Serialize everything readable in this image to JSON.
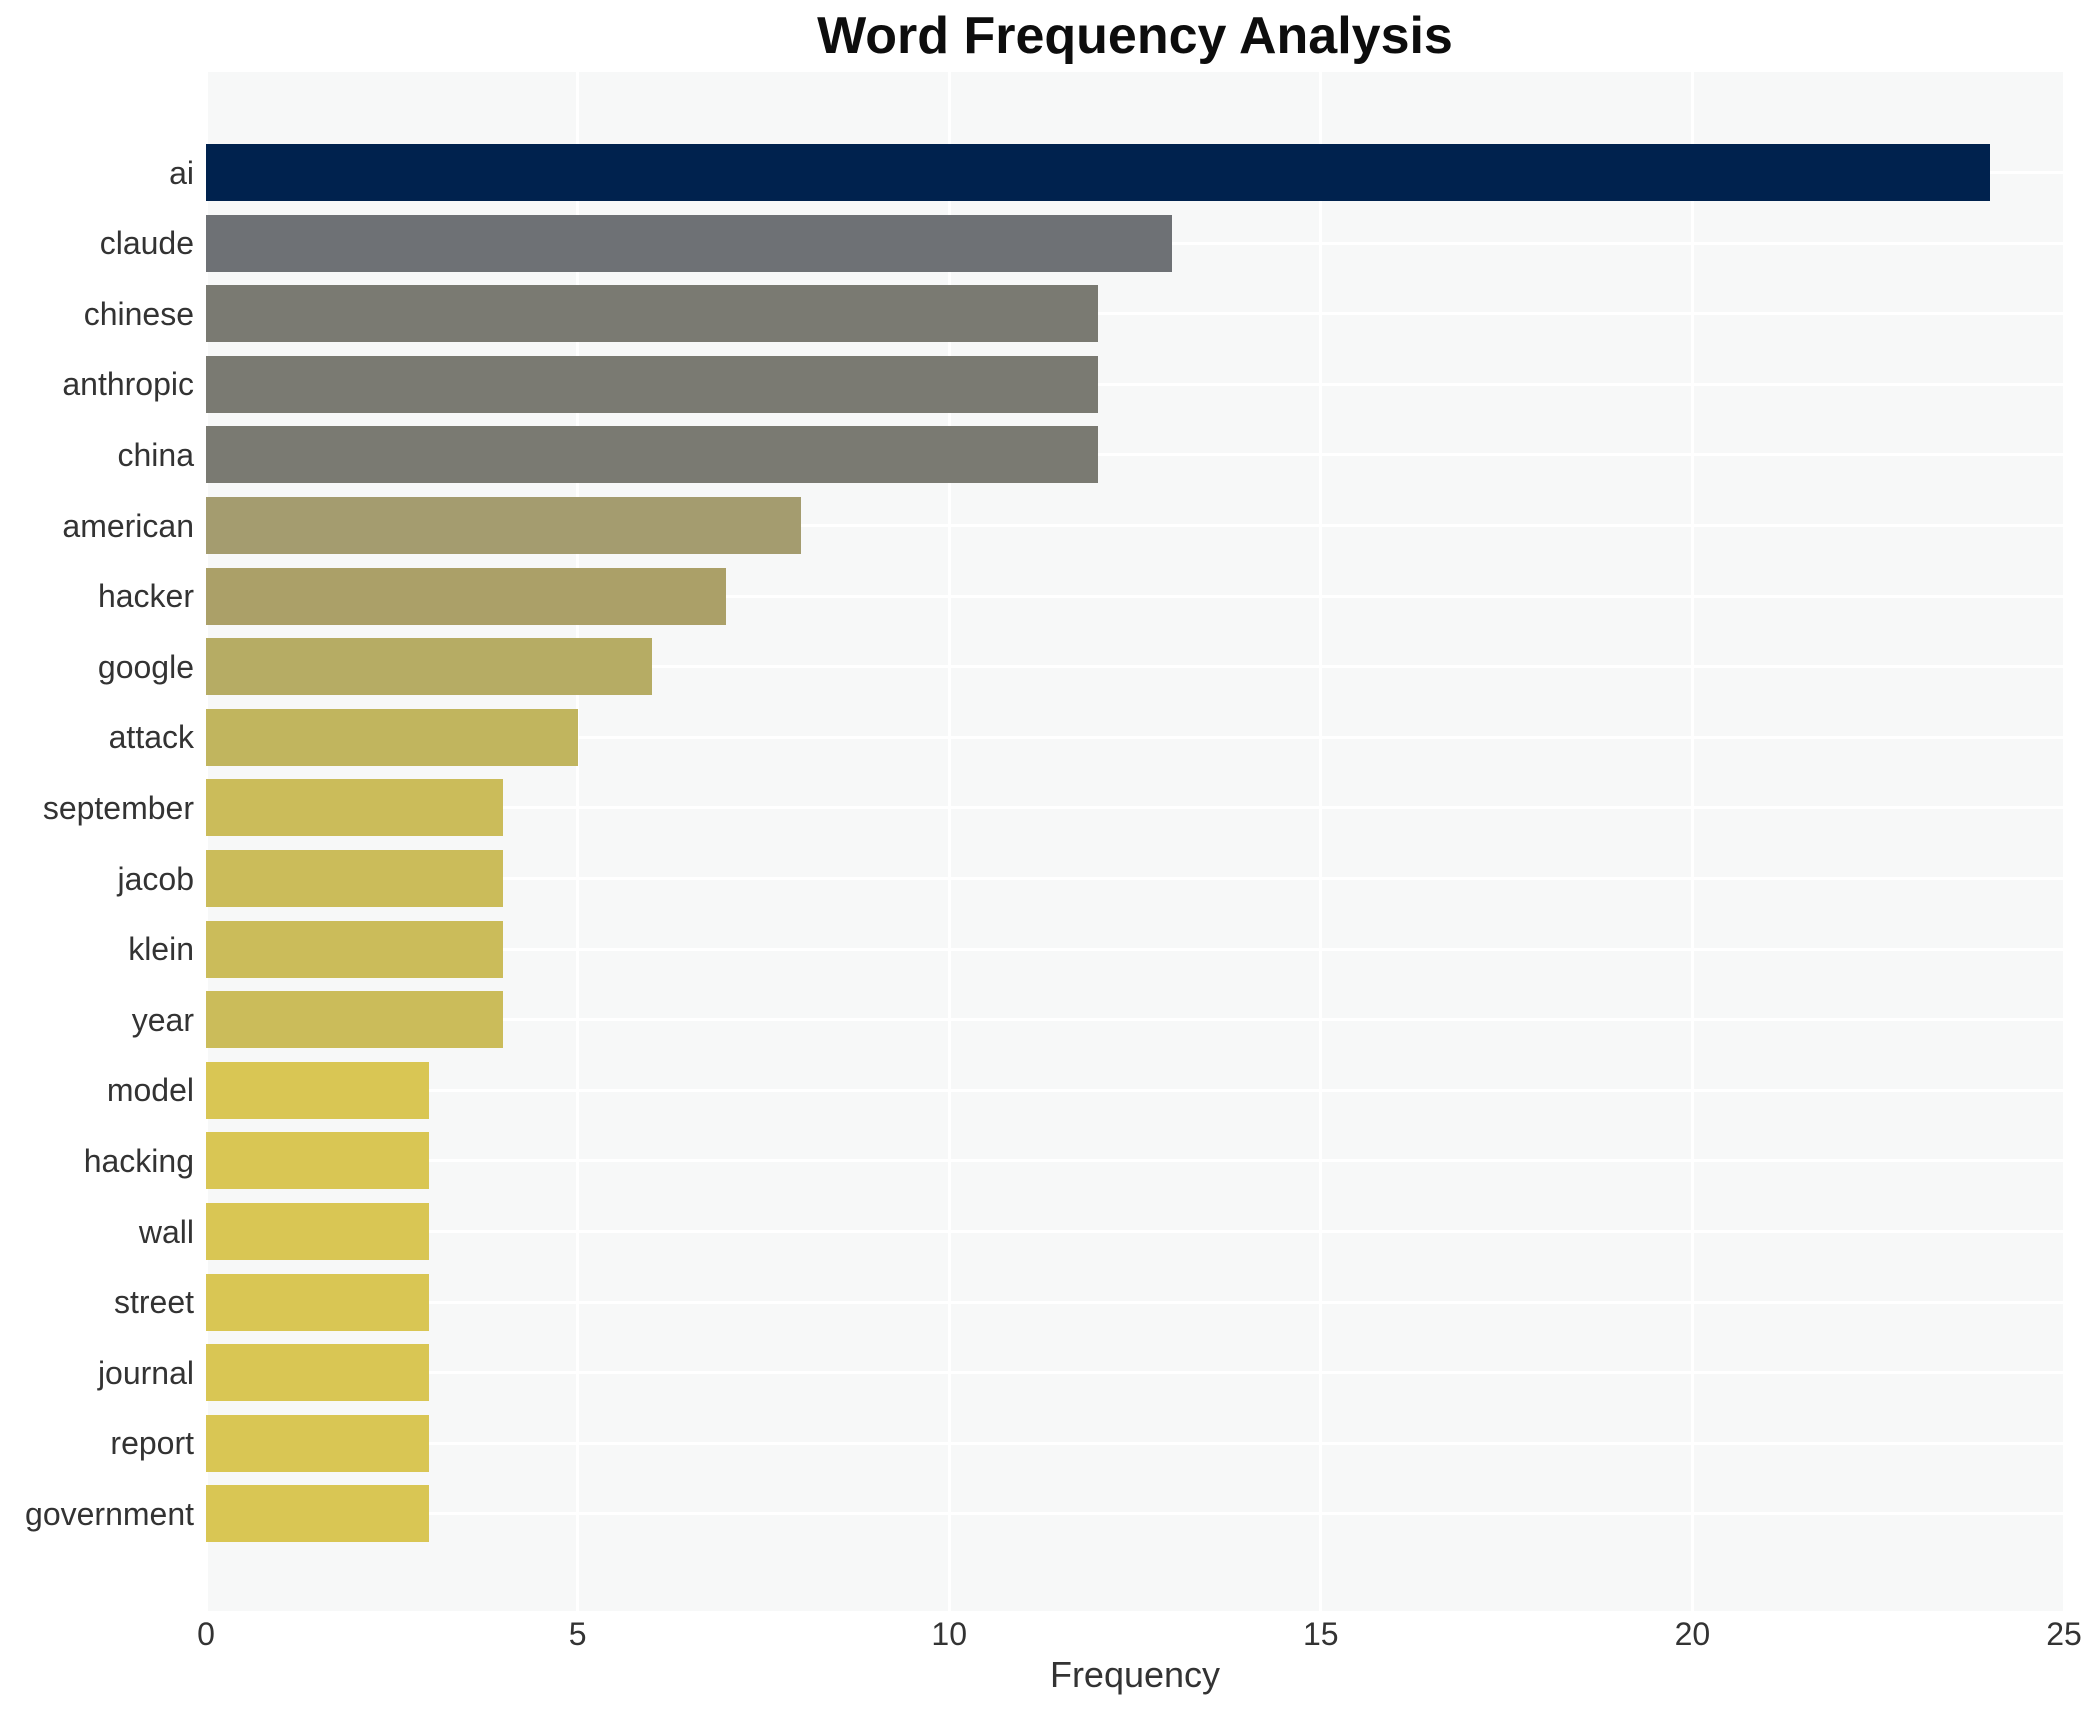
{
  "title": "Word Frequency Analysis",
  "chart_data": {
    "type": "bar",
    "orientation": "horizontal",
    "title": "Word Frequency Analysis",
    "xlabel": "Frequency",
    "ylabel": "",
    "xlim": [
      0,
      25
    ],
    "xticks": [
      0,
      5,
      10,
      15,
      20,
      25
    ],
    "grid": true,
    "legend": false,
    "categories": [
      "ai",
      "claude",
      "chinese",
      "anthropic",
      "china",
      "american",
      "hacker",
      "google",
      "attack",
      "september",
      "jacob",
      "klein",
      "year",
      "model",
      "hacking",
      "wall",
      "street",
      "journal",
      "report",
      "government"
    ],
    "values": [
      24,
      13,
      12,
      12,
      12,
      8,
      7,
      6,
      5,
      4,
      4,
      4,
      4,
      3,
      3,
      3,
      3,
      3,
      3,
      3
    ],
    "bar_colors": [
      "#00224e",
      "#6e7175",
      "#7a7a72",
      "#7a7a72",
      "#7a7a72",
      "#a49c6f",
      "#aba068",
      "#b6ac64",
      "#c1b55e",
      "#cbbc5a",
      "#cbbc5a",
      "#cbbc5a",
      "#cbbc5a",
      "#d9c654",
      "#d9c654",
      "#d9c654",
      "#d9c654",
      "#d9c654",
      "#d9c654",
      "#d9c654"
    ]
  },
  "style": {
    "figure_background": "#ffffff",
    "panel_background": "#f7f8f8",
    "grid_color": "#ffffff",
    "title_color": "#0d0d0d",
    "axis_text_color": "#333333",
    "max_bar_color": "#00224e",
    "min_bar_color": "#d9c654"
  }
}
